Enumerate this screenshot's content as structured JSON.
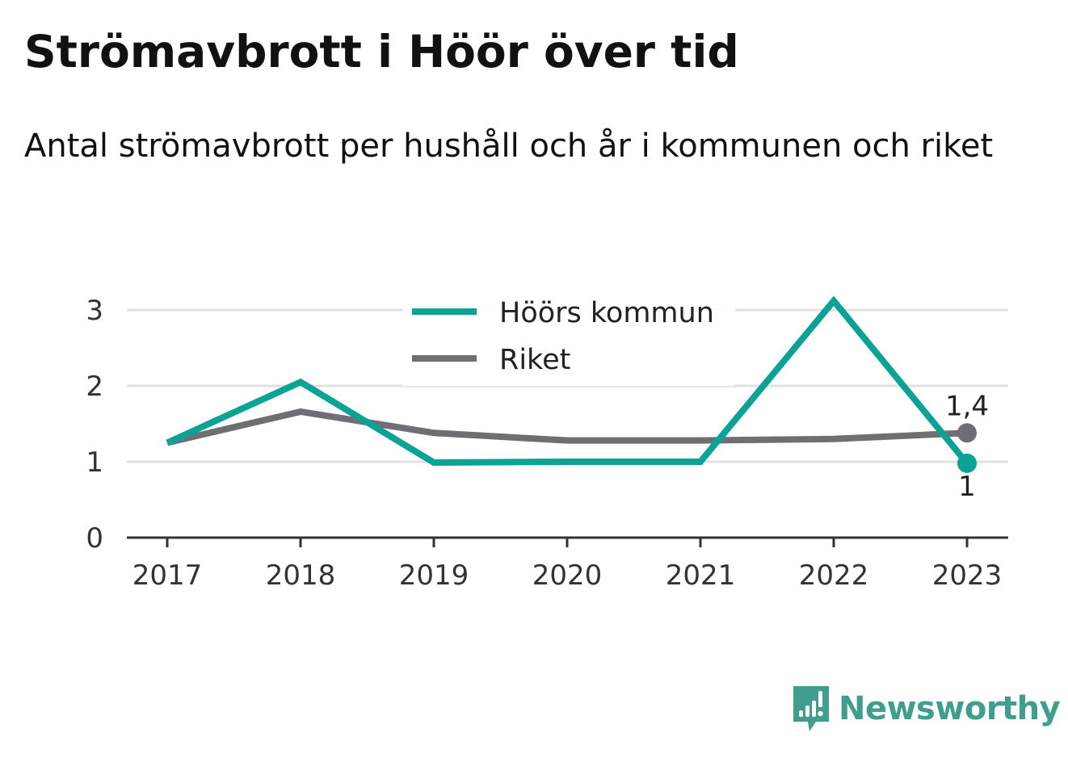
{
  "title": "Strömavbrott i Höör över tid",
  "subtitle": "Antal strömavbrott per hushåll och år i kommunen och riket",
  "brand": {
    "name": "Newsworthy",
    "logo_icon": "bar-chart-speech-bubble-icon",
    "color": "#3f9e8e"
  },
  "chart_data": {
    "type": "line",
    "x": [
      "2017",
      "2018",
      "2019",
      "2020",
      "2021",
      "2022",
      "2023"
    ],
    "ylim": [
      0,
      3
    ],
    "yticks": [
      "0",
      "1",
      "2",
      "3"
    ],
    "grid": true,
    "legend_placement": "top-center",
    "series": [
      {
        "name": "Höörs kommun",
        "color": "#0aa396",
        "values": [
          1.25,
          2.05,
          0.99,
          1.0,
          1.0,
          3.12,
          0.98
        ],
        "end_label": "1"
      },
      {
        "name": "Riket",
        "color": "#6e6e73",
        "values": [
          1.25,
          1.66,
          1.38,
          1.28,
          1.28,
          1.3,
          1.38
        ],
        "end_label": "1,4"
      }
    ]
  }
}
